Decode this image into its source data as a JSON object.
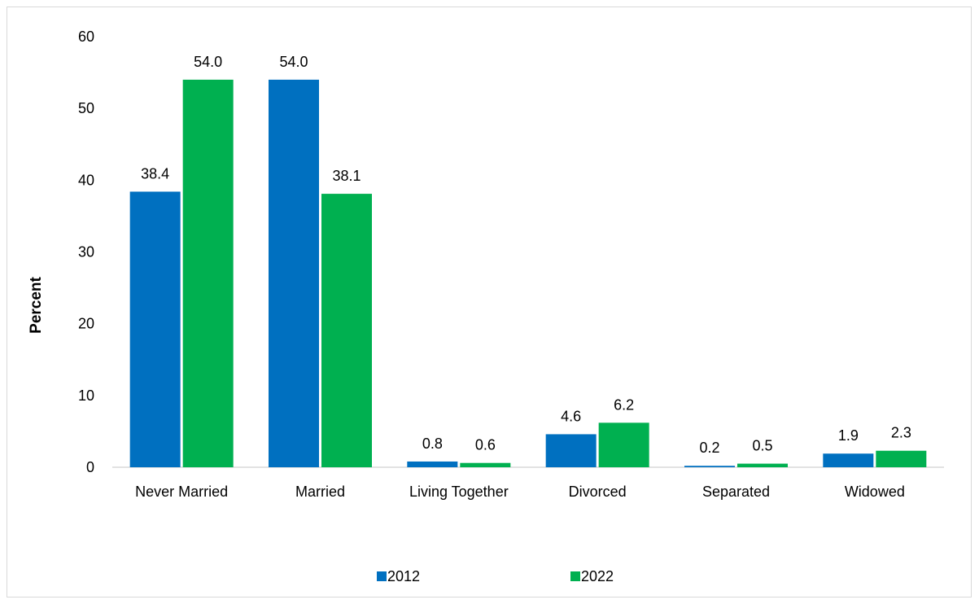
{
  "chart_data": {
    "type": "bar",
    "title": "",
    "xlabel": "",
    "ylabel": "Percent",
    "ylim": [
      0,
      60
    ],
    "yticks": [
      0,
      10,
      20,
      30,
      40,
      50,
      60
    ],
    "grid": false,
    "legend_position": "bottom",
    "categories": [
      "Never Married",
      "Married",
      "Living Together",
      "Divorced",
      "Separated",
      "Widowed"
    ],
    "series": [
      {
        "name": "2012",
        "color": "#0070C0",
        "values": [
          38.4,
          54.0,
          0.8,
          4.6,
          0.2,
          1.9
        ],
        "labels": [
          "38.4",
          "54.0",
          "0.8",
          "4.6",
          "0.2",
          "1.9"
        ]
      },
      {
        "name": "2022",
        "color": "#00B050",
        "values": [
          54.0,
          38.1,
          0.6,
          6.2,
          0.5,
          2.3
        ],
        "labels": [
          "54.0",
          "38.1",
          "0.6",
          "6.2",
          "0.5",
          "2.3"
        ]
      }
    ]
  }
}
